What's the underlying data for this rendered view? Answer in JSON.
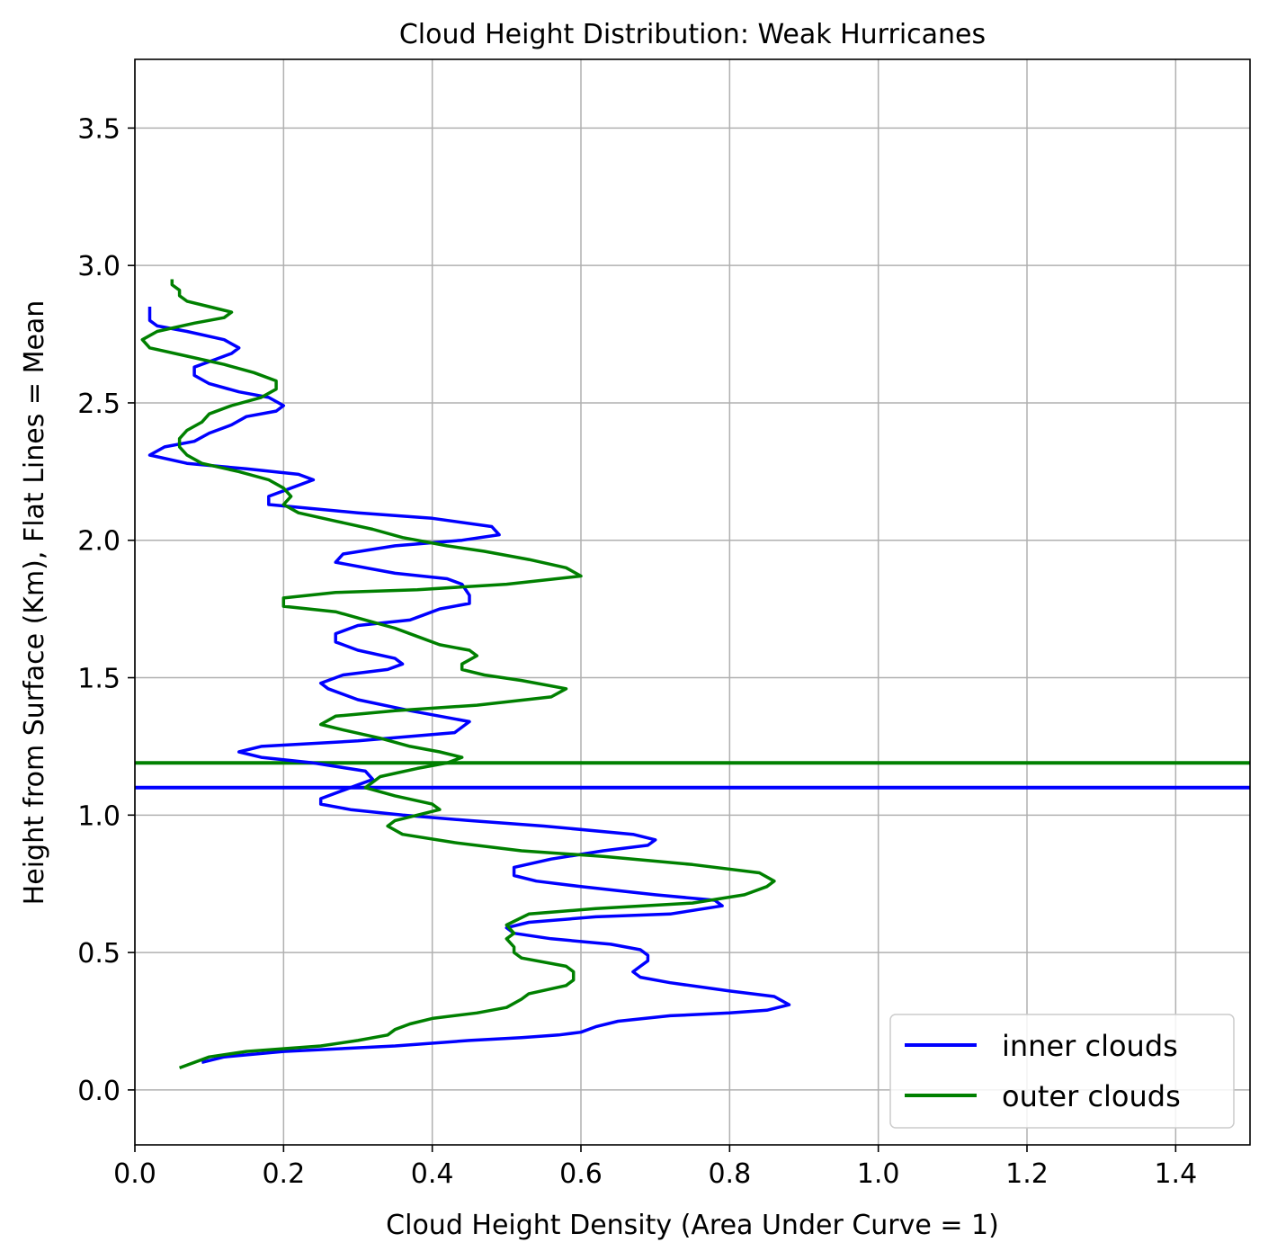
{
  "chart_data": {
    "type": "line",
    "title": "Cloud Height Distribution: Weak Hurricanes",
    "xlabel": "Cloud Height Density (Area Under Curve = 1)",
    "ylabel": "Height from Surface (Km), Flat Lines = Mean",
    "xlim": [
      0.0,
      1.5
    ],
    "ylim": [
      -0.2,
      3.75
    ],
    "xticks": [
      "0.0",
      "0.2",
      "0.4",
      "0.6",
      "0.8",
      "1.0",
      "1.2",
      "1.4"
    ],
    "yticks": [
      "0.0",
      "0.5",
      "1.0",
      "1.5",
      "2.0",
      "2.5",
      "3.0",
      "3.5"
    ],
    "grid": true,
    "legend_position": "lower-right",
    "series": [
      {
        "name": "inner clouds",
        "color": "#0000ff",
        "mean_height": 1.1,
        "points": [
          [
            0.09,
            0.1
          ],
          [
            0.12,
            0.12
          ],
          [
            0.2,
            0.14
          ],
          [
            0.35,
            0.16
          ],
          [
            0.45,
            0.18
          ],
          [
            0.52,
            0.19
          ],
          [
            0.57,
            0.2
          ],
          [
            0.6,
            0.21
          ],
          [
            0.62,
            0.23
          ],
          [
            0.65,
            0.25
          ],
          [
            0.72,
            0.27
          ],
          [
            0.8,
            0.28
          ],
          [
            0.85,
            0.29
          ],
          [
            0.88,
            0.31
          ],
          [
            0.86,
            0.34
          ],
          [
            0.8,
            0.36
          ],
          [
            0.72,
            0.39
          ],
          [
            0.68,
            0.41
          ],
          [
            0.67,
            0.43
          ],
          [
            0.68,
            0.45
          ],
          [
            0.69,
            0.47
          ],
          [
            0.69,
            0.49
          ],
          [
            0.68,
            0.51
          ],
          [
            0.64,
            0.53
          ],
          [
            0.56,
            0.55
          ],
          [
            0.51,
            0.57
          ],
          [
            0.5,
            0.59
          ],
          [
            0.53,
            0.61
          ],
          [
            0.62,
            0.63
          ],
          [
            0.72,
            0.64
          ],
          [
            0.79,
            0.67
          ],
          [
            0.78,
            0.69
          ],
          [
            0.7,
            0.71
          ],
          [
            0.6,
            0.74
          ],
          [
            0.54,
            0.76
          ],
          [
            0.51,
            0.78
          ],
          [
            0.51,
            0.81
          ],
          [
            0.56,
            0.84
          ],
          [
            0.63,
            0.87
          ],
          [
            0.69,
            0.89
          ],
          [
            0.7,
            0.91
          ],
          [
            0.67,
            0.93
          ],
          [
            0.55,
            0.96
          ],
          [
            0.45,
            0.98
          ],
          [
            0.36,
            1.0
          ],
          [
            0.29,
            1.02
          ],
          [
            0.25,
            1.04
          ],
          [
            0.25,
            1.06
          ],
          [
            0.28,
            1.09
          ],
          [
            0.3,
            1.11
          ],
          [
            0.32,
            1.13
          ],
          [
            0.31,
            1.16
          ],
          [
            0.24,
            1.19
          ],
          [
            0.17,
            1.21
          ],
          [
            0.14,
            1.23
          ],
          [
            0.17,
            1.25
          ],
          [
            0.3,
            1.27
          ],
          [
            0.43,
            1.3
          ],
          [
            0.45,
            1.34
          ],
          [
            0.37,
            1.38
          ],
          [
            0.3,
            1.42
          ],
          [
            0.26,
            1.46
          ],
          [
            0.25,
            1.48
          ],
          [
            0.28,
            1.51
          ],
          [
            0.34,
            1.53
          ],
          [
            0.36,
            1.55
          ],
          [
            0.35,
            1.57
          ],
          [
            0.3,
            1.6
          ],
          [
            0.27,
            1.63
          ],
          [
            0.27,
            1.66
          ],
          [
            0.3,
            1.69
          ],
          [
            0.37,
            1.71
          ],
          [
            0.39,
            1.73
          ],
          [
            0.41,
            1.75
          ],
          [
            0.45,
            1.77
          ],
          [
            0.45,
            1.8
          ],
          [
            0.44,
            1.84
          ],
          [
            0.42,
            1.86
          ],
          [
            0.35,
            1.88
          ],
          [
            0.27,
            1.92
          ],
          [
            0.28,
            1.95
          ],
          [
            0.35,
            1.98
          ],
          [
            0.44,
            2.0
          ],
          [
            0.49,
            2.02
          ],
          [
            0.48,
            2.05
          ],
          [
            0.4,
            2.08
          ],
          [
            0.3,
            2.1
          ],
          [
            0.18,
            2.13
          ],
          [
            0.18,
            2.16
          ],
          [
            0.21,
            2.19
          ],
          [
            0.24,
            2.22
          ],
          [
            0.22,
            2.24
          ],
          [
            0.15,
            2.26
          ],
          [
            0.07,
            2.28
          ],
          [
            0.02,
            2.31
          ],
          [
            0.04,
            2.34
          ],
          [
            0.08,
            2.36
          ],
          [
            0.1,
            2.39
          ],
          [
            0.13,
            2.42
          ],
          [
            0.15,
            2.45
          ],
          [
            0.19,
            2.47
          ],
          [
            0.2,
            2.49
          ],
          [
            0.18,
            2.52
          ],
          [
            0.14,
            2.54
          ],
          [
            0.1,
            2.57
          ],
          [
            0.08,
            2.6
          ],
          [
            0.08,
            2.63
          ],
          [
            0.11,
            2.66
          ],
          [
            0.13,
            2.68
          ],
          [
            0.14,
            2.7
          ],
          [
            0.12,
            2.73
          ],
          [
            0.07,
            2.76
          ],
          [
            0.03,
            2.78
          ],
          [
            0.02,
            2.8
          ],
          [
            0.02,
            2.82
          ],
          [
            0.02,
            2.85
          ]
        ]
      },
      {
        "name": "outer clouds",
        "color": "#008000",
        "mean_height": 1.19,
        "points": [
          [
            0.06,
            0.08
          ],
          [
            0.1,
            0.12
          ],
          [
            0.15,
            0.14
          ],
          [
            0.25,
            0.16
          ],
          [
            0.3,
            0.18
          ],
          [
            0.34,
            0.2
          ],
          [
            0.35,
            0.22
          ],
          [
            0.37,
            0.24
          ],
          [
            0.4,
            0.26
          ],
          [
            0.46,
            0.28
          ],
          [
            0.5,
            0.3
          ],
          [
            0.52,
            0.33
          ],
          [
            0.53,
            0.35
          ],
          [
            0.58,
            0.38
          ],
          [
            0.59,
            0.4
          ],
          [
            0.59,
            0.43
          ],
          [
            0.58,
            0.45
          ],
          [
            0.52,
            0.48
          ],
          [
            0.51,
            0.5
          ],
          [
            0.51,
            0.52
          ],
          [
            0.5,
            0.55
          ],
          [
            0.51,
            0.57
          ],
          [
            0.5,
            0.6
          ],
          [
            0.53,
            0.64
          ],
          [
            0.62,
            0.66
          ],
          [
            0.75,
            0.68
          ],
          [
            0.82,
            0.71
          ],
          [
            0.85,
            0.74
          ],
          [
            0.86,
            0.76
          ],
          [
            0.84,
            0.79
          ],
          [
            0.75,
            0.82
          ],
          [
            0.63,
            0.85
          ],
          [
            0.52,
            0.87
          ],
          [
            0.43,
            0.9
          ],
          [
            0.36,
            0.93
          ],
          [
            0.34,
            0.96
          ],
          [
            0.35,
            0.98
          ],
          [
            0.38,
            1.0
          ],
          [
            0.41,
            1.02
          ],
          [
            0.4,
            1.04
          ],
          [
            0.35,
            1.07
          ],
          [
            0.31,
            1.1
          ],
          [
            0.33,
            1.14
          ],
          [
            0.38,
            1.17
          ],
          [
            0.42,
            1.19
          ],
          [
            0.44,
            1.21
          ],
          [
            0.41,
            1.23
          ],
          [
            0.37,
            1.25
          ],
          [
            0.33,
            1.28
          ],
          [
            0.28,
            1.31
          ],
          [
            0.25,
            1.33
          ],
          [
            0.27,
            1.36
          ],
          [
            0.35,
            1.38
          ],
          [
            0.46,
            1.4
          ],
          [
            0.56,
            1.43
          ],
          [
            0.58,
            1.46
          ],
          [
            0.52,
            1.49
          ],
          [
            0.47,
            1.51
          ],
          [
            0.44,
            1.53
          ],
          [
            0.44,
            1.55
          ],
          [
            0.46,
            1.58
          ],
          [
            0.45,
            1.6
          ],
          [
            0.41,
            1.62
          ],
          [
            0.38,
            1.65
          ],
          [
            0.35,
            1.68
          ],
          [
            0.31,
            1.71
          ],
          [
            0.27,
            1.74
          ],
          [
            0.2,
            1.76
          ],
          [
            0.2,
            1.79
          ],
          [
            0.27,
            1.81
          ],
          [
            0.38,
            1.82
          ],
          [
            0.5,
            1.84
          ],
          [
            0.6,
            1.87
          ],
          [
            0.58,
            1.9
          ],
          [
            0.53,
            1.93
          ],
          [
            0.47,
            1.96
          ],
          [
            0.42,
            1.98
          ],
          [
            0.36,
            2.01
          ],
          [
            0.32,
            2.04
          ],
          [
            0.27,
            2.07
          ],
          [
            0.22,
            2.1
          ],
          [
            0.2,
            2.13
          ],
          [
            0.21,
            2.16
          ],
          [
            0.2,
            2.19
          ],
          [
            0.18,
            2.22
          ],
          [
            0.14,
            2.25
          ],
          [
            0.09,
            2.28
          ],
          [
            0.07,
            2.31
          ],
          [
            0.06,
            2.34
          ],
          [
            0.06,
            2.37
          ],
          [
            0.07,
            2.4
          ],
          [
            0.09,
            2.43
          ],
          [
            0.1,
            2.46
          ],
          [
            0.13,
            2.49
          ],
          [
            0.17,
            2.52
          ],
          [
            0.19,
            2.55
          ],
          [
            0.19,
            2.58
          ],
          [
            0.16,
            2.61
          ],
          [
            0.12,
            2.64
          ],
          [
            0.07,
            2.67
          ],
          [
            0.02,
            2.7
          ],
          [
            0.01,
            2.73
          ],
          [
            0.03,
            2.76
          ],
          [
            0.08,
            2.79
          ],
          [
            0.12,
            2.81
          ],
          [
            0.13,
            2.83
          ],
          [
            0.1,
            2.85
          ],
          [
            0.07,
            2.87
          ],
          [
            0.06,
            2.89
          ],
          [
            0.06,
            2.91
          ],
          [
            0.05,
            2.93
          ],
          [
            0.05,
            2.95
          ]
        ]
      }
    ]
  }
}
